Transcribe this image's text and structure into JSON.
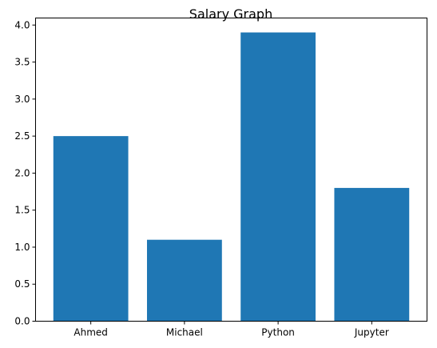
{
  "chart_data": {
    "type": "bar",
    "title": "Salary Graph",
    "xlabel": "",
    "ylabel": "",
    "categories": [
      "Ahmed",
      "Michael",
      "Python",
      "Jupyter"
    ],
    "values": [
      2.5,
      1.1,
      3.9,
      1.8
    ],
    "ylim": [
      0,
      4.0
    ],
    "yticks": [
      "0.0",
      "0.5",
      "1.0",
      "1.5",
      "2.0",
      "2.5",
      "3.0",
      "3.5",
      "4.0"
    ],
    "bar_color": "#1f77b4",
    "grid": false,
    "legend": "none"
  }
}
